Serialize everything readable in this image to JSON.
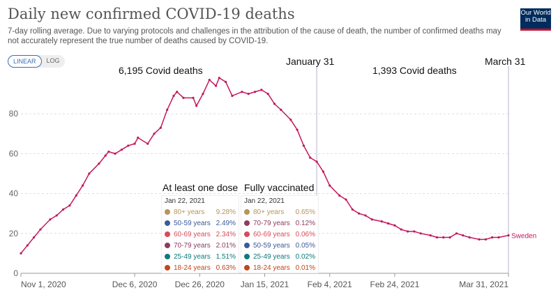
{
  "header": {
    "title": "Daily new confirmed COVID-19 deaths",
    "subtitle": "7-day rolling average. Due to varying protocols and challenges in the attribution of the cause of death, the number of confirmed deaths may not accurately represent the true number of deaths caused by COVID-19.",
    "logo": "Our World in Data",
    "scale_options": [
      "LINEAR",
      "LOG"
    ],
    "selected_scale": "LINEAR"
  },
  "annotations": {
    "left": "6,195 Covid deaths",
    "jan": "January 31",
    "right": "1,393 Covid deaths",
    "mar": "March 31"
  },
  "chart_data": {
    "type": "line",
    "title": "Daily new confirmed COVID-19 deaths",
    "ylim": [
      0,
      100
    ],
    "yticks": [
      0,
      20,
      40,
      60,
      80
    ],
    "xticks": [
      {
        "date": "2020-11-01",
        "label": "Nov 1, 2020"
      },
      {
        "date": "2020-12-06",
        "label": "Dec 6, 2020"
      },
      {
        "date": "2020-12-26",
        "label": "Dec 26, 2020"
      },
      {
        "date": "2021-01-15",
        "label": "Jan 15, 2021"
      },
      {
        "date": "2021-02-04",
        "label": "Feb 4, 2021"
      },
      {
        "date": "2021-02-24",
        "label": "Feb 24, 2021"
      },
      {
        "date": "2021-03-31",
        "label": "Mar 31, 2021"
      }
    ],
    "xlim": [
      "2020-11-01",
      "2021-03-31"
    ],
    "grid": true,
    "series": [
      {
        "name": "Sweden",
        "color": "#c2185b",
        "points": [
          [
            "2020-11-01",
            10
          ],
          [
            "2020-11-03",
            14
          ],
          [
            "2020-11-05",
            18
          ],
          [
            "2020-11-07",
            22
          ],
          [
            "2020-11-10",
            27
          ],
          [
            "2020-11-12",
            29
          ],
          [
            "2020-11-14",
            32
          ],
          [
            "2020-11-16",
            34
          ],
          [
            "2020-11-18",
            39
          ],
          [
            "2020-11-20",
            44
          ],
          [
            "2020-11-22",
            50
          ],
          [
            "2020-11-25",
            55
          ],
          [
            "2020-11-27",
            59
          ],
          [
            "2020-11-28",
            61
          ],
          [
            "2020-11-30",
            60
          ],
          [
            "2020-12-02",
            62
          ],
          [
            "2020-12-04",
            64
          ],
          [
            "2020-12-06",
            65
          ],
          [
            "2020-12-07",
            68
          ],
          [
            "2020-12-10",
            65
          ],
          [
            "2020-12-12",
            70
          ],
          [
            "2020-12-14",
            73
          ],
          [
            "2020-12-16",
            82
          ],
          [
            "2020-12-18",
            89
          ],
          [
            "2020-12-19",
            91
          ],
          [
            "2020-12-21",
            88
          ],
          [
            "2020-12-24",
            88
          ],
          [
            "2020-12-25",
            84
          ],
          [
            "2020-12-27",
            90
          ],
          [
            "2020-12-29",
            97
          ],
          [
            "2020-12-31",
            94
          ],
          [
            "2021-01-01",
            98
          ],
          [
            "2021-01-03",
            96
          ],
          [
            "2021-01-05",
            89
          ],
          [
            "2021-01-08",
            91
          ],
          [
            "2021-01-10",
            90
          ],
          [
            "2021-01-12",
            91
          ],
          [
            "2021-01-14",
            92
          ],
          [
            "2021-01-16",
            90
          ],
          [
            "2021-01-18",
            85
          ],
          [
            "2021-01-20",
            82
          ],
          [
            "2021-01-23",
            77
          ],
          [
            "2021-01-25",
            72
          ],
          [
            "2021-01-27",
            64
          ],
          [
            "2021-01-29",
            58
          ],
          [
            "2021-01-31",
            56
          ],
          [
            "2021-02-02",
            51
          ],
          [
            "2021-02-04",
            44
          ],
          [
            "2021-02-07",
            39
          ],
          [
            "2021-02-09",
            37
          ],
          [
            "2021-02-11",
            32
          ],
          [
            "2021-02-13",
            30
          ],
          [
            "2021-02-15",
            29
          ],
          [
            "2021-02-17",
            27
          ],
          [
            "2021-02-20",
            26
          ],
          [
            "2021-02-22",
            25
          ],
          [
            "2021-02-24",
            24
          ],
          [
            "2021-02-26",
            22
          ],
          [
            "2021-02-28",
            21
          ],
          [
            "2021-03-02",
            21
          ],
          [
            "2021-03-04",
            20
          ],
          [
            "2021-03-07",
            19
          ],
          [
            "2021-03-09",
            18
          ],
          [
            "2021-03-11",
            18
          ],
          [
            "2021-03-13",
            18
          ],
          [
            "2021-03-15",
            20
          ],
          [
            "2021-03-17",
            19
          ],
          [
            "2021-03-19",
            18
          ],
          [
            "2021-03-22",
            17
          ],
          [
            "2021-03-24",
            17
          ],
          [
            "2021-03-26",
            18
          ],
          [
            "2021-03-28",
            18
          ],
          [
            "2021-03-31",
            19
          ]
        ]
      }
    ],
    "vertical_lines": [
      "2021-01-31",
      "2021-03-31"
    ]
  },
  "vaccination": {
    "first": {
      "heading": "At least one dose",
      "date": "Jan 22, 2021",
      "rows": [
        {
          "label": "80+ years",
          "value": "9.28%",
          "color": "#b8935a"
        },
        {
          "label": "50-59 years",
          "value": "2.49%",
          "color": "#3c5a99"
        },
        {
          "label": "60-69 years",
          "value": "2.34%",
          "color": "#d94a5a"
        },
        {
          "label": "70-79 years",
          "value": "2.01%",
          "color": "#8e3b5e"
        },
        {
          "label": "25-49 years",
          "value": "1.51%",
          "color": "#0f7a7a"
        },
        {
          "label": "18-24 years",
          "value": "0.63%",
          "color": "#c0461b"
        }
      ]
    },
    "full": {
      "heading": "Fully vaccinated",
      "date": "Jan 22, 2021",
      "rows": [
        {
          "label": "80+ years",
          "value": "0.65%",
          "color": "#b8935a"
        },
        {
          "label": "70-79 years",
          "value": "0.12%",
          "color": "#8e3b5e"
        },
        {
          "label": "60-69 years",
          "value": "0.06%",
          "color": "#d94a5a"
        },
        {
          "label": "50-59 years",
          "value": "0.05%",
          "color": "#3c5a99"
        },
        {
          "label": "25-49 years",
          "value": "0.02%",
          "color": "#0f7a7a"
        },
        {
          "label": "18-24 years",
          "value": "0.01%",
          "color": "#c0461b"
        }
      ]
    }
  }
}
